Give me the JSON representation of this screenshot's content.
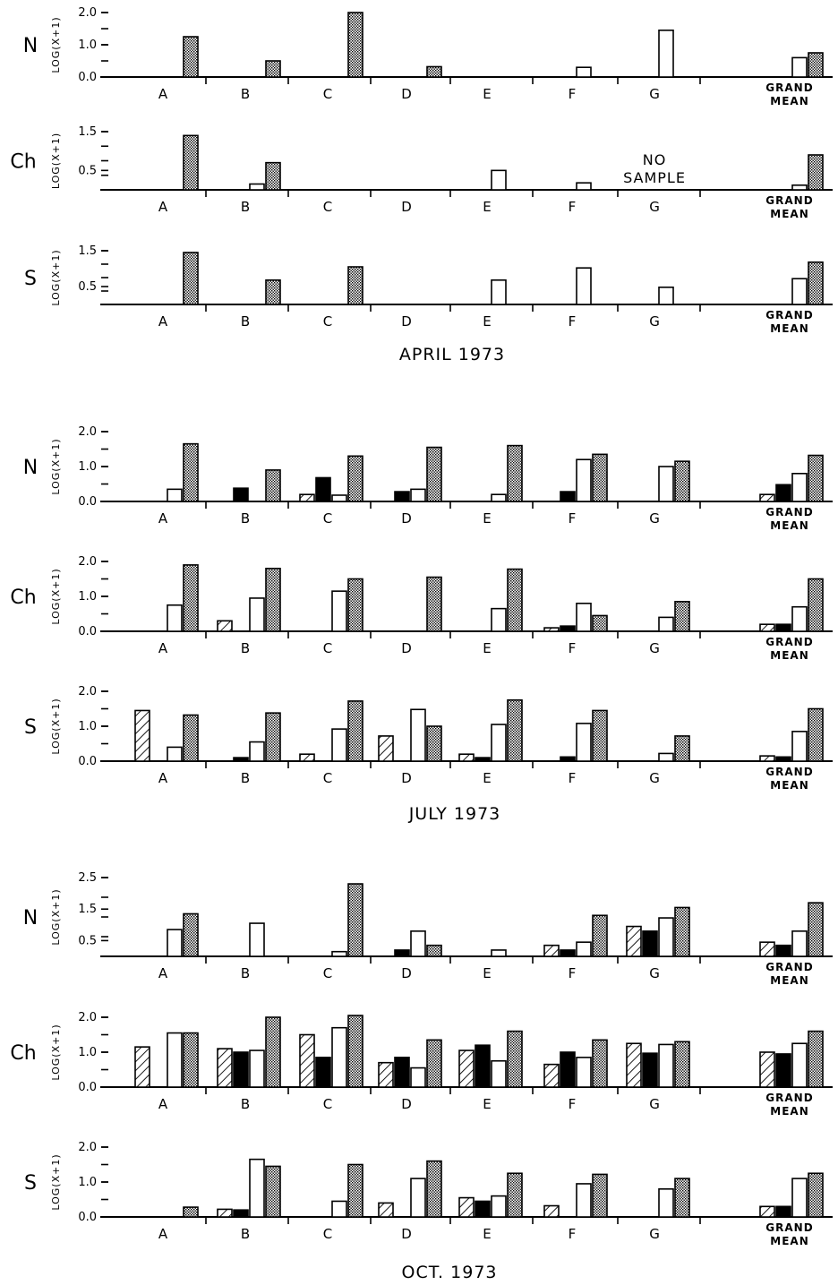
{
  "chart_data": [
    {
      "type": "bar",
      "period": "APRIL 1973",
      "station": "N",
      "ylabel": "LOG(X+1)",
      "yticks": [
        "2.0",
        "1.0",
        "0.0"
      ],
      "ylim": [
        0,
        2.0
      ],
      "categories": [
        "A",
        "B",
        "C",
        "D",
        "E",
        "F",
        "G"
      ],
      "grand_mean_label": [
        "GRAND",
        "MEAN"
      ],
      "bars": [
        [
          null,
          null,
          null,
          1.25
        ],
        [
          null,
          null,
          null,
          0.5
        ],
        [
          null,
          null,
          null,
          2.0
        ],
        [
          null,
          null,
          null,
          0.32
        ],
        [
          null,
          null,
          null,
          null
        ],
        [
          null,
          null,
          0.3,
          null
        ],
        [
          null,
          null,
          1.45,
          null
        ]
      ],
      "grand_mean": [
        null,
        null,
        0.6,
        0.75
      ]
    },
    {
      "type": "bar",
      "period": "APRIL 1973",
      "station": "Ch",
      "ylabel": "LOG(X+1)",
      "yticks": [
        "1.5",
        "0.5"
      ],
      "ylim": [
        0,
        1.5
      ],
      "categories": [
        "A",
        "B",
        "C",
        "D",
        "E",
        "F",
        "G"
      ],
      "grand_mean_label": [
        "GRAND",
        "MEAN"
      ],
      "annotation": [
        "NO",
        "SAMPLE"
      ],
      "bars": [
        [
          null,
          null,
          null,
          1.4
        ],
        [
          null,
          null,
          0.15,
          0.7
        ],
        [
          null,
          null,
          null,
          null
        ],
        [
          null,
          null,
          null,
          null
        ],
        [
          null,
          null,
          0.5,
          null
        ],
        [
          null,
          null,
          0.18,
          null
        ],
        [
          null,
          null,
          null,
          null
        ]
      ],
      "grand_mean": [
        null,
        null,
        0.12,
        0.9
      ]
    },
    {
      "type": "bar",
      "period": "APRIL 1973",
      "station": "S",
      "ylabel": "LOG(X+1)",
      "yticks": [
        "1.5",
        "0.5"
      ],
      "ylim": [
        0,
        1.5
      ],
      "categories": [
        "A",
        "B",
        "C",
        "D",
        "E",
        "F",
        "G"
      ],
      "grand_mean_label": [
        "GRAND",
        "MEAN"
      ],
      "bars": [
        [
          null,
          null,
          null,
          1.45
        ],
        [
          null,
          null,
          null,
          0.68
        ],
        [
          null,
          null,
          null,
          1.05
        ],
        [
          null,
          null,
          null,
          null
        ],
        [
          null,
          null,
          0.68,
          null
        ],
        [
          null,
          null,
          1.02,
          null
        ],
        [
          null,
          null,
          0.48,
          null
        ]
      ],
      "grand_mean": [
        null,
        null,
        0.72,
        1.18
      ]
    },
    {
      "type": "bar",
      "period": "JULY 1973",
      "station": "N",
      "ylabel": "LOG(X+1)",
      "yticks": [
        "2.0",
        "1.0",
        "0.0"
      ],
      "ylim": [
        0,
        2.0
      ],
      "categories": [
        "A",
        "B",
        "C",
        "D",
        "E",
        "F",
        "G"
      ],
      "grand_mean_label": [
        "GRAND",
        "MEAN"
      ],
      "bars": [
        [
          null,
          null,
          0.35,
          1.65
        ],
        [
          null,
          0.38,
          null,
          0.9
        ],
        [
          0.2,
          0.68,
          0.18,
          1.3
        ],
        [
          null,
          0.28,
          0.35,
          1.55
        ],
        [
          null,
          null,
          0.2,
          1.6
        ],
        [
          null,
          0.28,
          1.2,
          1.35
        ],
        [
          null,
          null,
          1.0,
          1.15
        ]
      ],
      "grand_mean": [
        0.2,
        0.48,
        0.8,
        1.32
      ]
    },
    {
      "type": "bar",
      "period": "JULY 1973",
      "station": "Ch",
      "ylabel": "LOG(X+1)",
      "yticks": [
        "2.0",
        "1.0",
        "0.0"
      ],
      "ylim": [
        0,
        2.0
      ],
      "categories": [
        "A",
        "B",
        "C",
        "D",
        "E",
        "F",
        "G"
      ],
      "grand_mean_label": [
        "GRAND",
        "MEAN"
      ],
      "bars": [
        [
          null,
          null,
          0.75,
          1.9
        ],
        [
          0.3,
          null,
          0.95,
          1.8
        ],
        [
          null,
          null,
          1.15,
          1.5
        ],
        [
          null,
          null,
          null,
          1.55
        ],
        [
          null,
          null,
          0.65,
          1.78
        ],
        [
          0.1,
          0.15,
          0.8,
          0.45
        ],
        [
          null,
          null,
          0.4,
          0.85
        ]
      ],
      "grand_mean": [
        0.2,
        0.2,
        0.7,
        1.5
      ]
    },
    {
      "type": "bar",
      "period": "JULY 1973",
      "station": "S",
      "ylabel": "LOG(X+1)",
      "yticks": [
        "2.0",
        "1.0",
        "0.0"
      ],
      "ylim": [
        0,
        2.0
      ],
      "categories": [
        "A",
        "B",
        "C",
        "D",
        "E",
        "F",
        "G"
      ],
      "grand_mean_label": [
        "GRAND",
        "MEAN"
      ],
      "bars": [
        [
          1.45,
          null,
          0.4,
          1.32
        ],
        [
          null,
          0.1,
          0.55,
          1.38
        ],
        [
          0.2,
          null,
          0.92,
          1.72
        ],
        [
          0.72,
          null,
          1.48,
          1.0
        ],
        [
          0.2,
          0.1,
          1.05,
          1.75
        ],
        [
          null,
          0.12,
          1.08,
          1.45
        ],
        [
          null,
          null,
          0.22,
          0.72
        ]
      ],
      "grand_mean": [
        0.15,
        0.12,
        0.85,
        1.5
      ]
    },
    {
      "type": "bar",
      "period": "OCT. 1973",
      "station": "N",
      "ylabel": "LOG(X+1)",
      "yticks": [
        "2.5",
        "1.5",
        "0.5"
      ],
      "ylim": [
        0,
        2.5
      ],
      "categories": [
        "A",
        "B",
        "C",
        "D",
        "E",
        "F",
        "G"
      ],
      "grand_mean_label": [
        "GRAND",
        "MEAN"
      ],
      "bars": [
        [
          null,
          null,
          0.85,
          1.35
        ],
        [
          null,
          null,
          1.05,
          null
        ],
        [
          null,
          null,
          0.15,
          2.3
        ],
        [
          null,
          0.2,
          0.8,
          0.35
        ],
        [
          null,
          null,
          0.2,
          null
        ],
        [
          0.35,
          0.2,
          0.45,
          1.3
        ],
        [
          0.95,
          0.8,
          1.22,
          1.55
        ]
      ],
      "grand_mean": [
        0.45,
        0.35,
        0.8,
        1.7
      ]
    },
    {
      "type": "bar",
      "period": "OCT. 1973",
      "station": "Ch",
      "ylabel": "LOG(X+1)",
      "yticks": [
        "2.0",
        "1.0",
        "0.0"
      ],
      "ylim": [
        0,
        2.0
      ],
      "categories": [
        "A",
        "B",
        "C",
        "D",
        "E",
        "F",
        "G"
      ],
      "grand_mean_label": [
        "GRAND",
        "MEAN"
      ],
      "bars": [
        [
          1.15,
          null,
          1.55,
          1.55
        ],
        [
          1.1,
          1.0,
          1.05,
          2.0
        ],
        [
          1.5,
          0.85,
          1.7,
          2.05
        ],
        [
          0.7,
          0.85,
          0.55,
          1.35
        ],
        [
          1.05,
          1.2,
          0.75,
          1.6
        ],
        [
          0.65,
          1.0,
          0.85,
          1.35
        ],
        [
          1.25,
          0.97,
          1.22,
          1.3
        ]
      ],
      "grand_mean": [
        1.0,
        0.95,
        1.25,
        1.6
      ]
    },
    {
      "type": "bar",
      "period": "OCT. 1973",
      "station": "S",
      "ylabel": "LOG(X+1)",
      "yticks": [
        "2.0",
        "1.0",
        "0.0"
      ],
      "ylim": [
        0,
        2.0
      ],
      "categories": [
        "A",
        "B",
        "C",
        "D",
        "E",
        "F",
        "G"
      ],
      "grand_mean_label": [
        "GRAND",
        "MEAN"
      ],
      "bars": [
        [
          null,
          null,
          null,
          0.28
        ],
        [
          0.22,
          0.2,
          1.65,
          1.45
        ],
        [
          null,
          null,
          0.45,
          1.5
        ],
        [
          0.4,
          null,
          1.1,
          1.6
        ],
        [
          0.55,
          0.45,
          0.6,
          1.25
        ],
        [
          0.32,
          null,
          0.95,
          1.22
        ],
        [
          null,
          null,
          0.8,
          1.1
        ]
      ],
      "grand_mean": [
        0.3,
        0.3,
        1.1,
        1.25
      ]
    }
  ],
  "month_labels": [
    "APRIL 1973",
    "JULY 1973",
    "OCT. 1973"
  ]
}
